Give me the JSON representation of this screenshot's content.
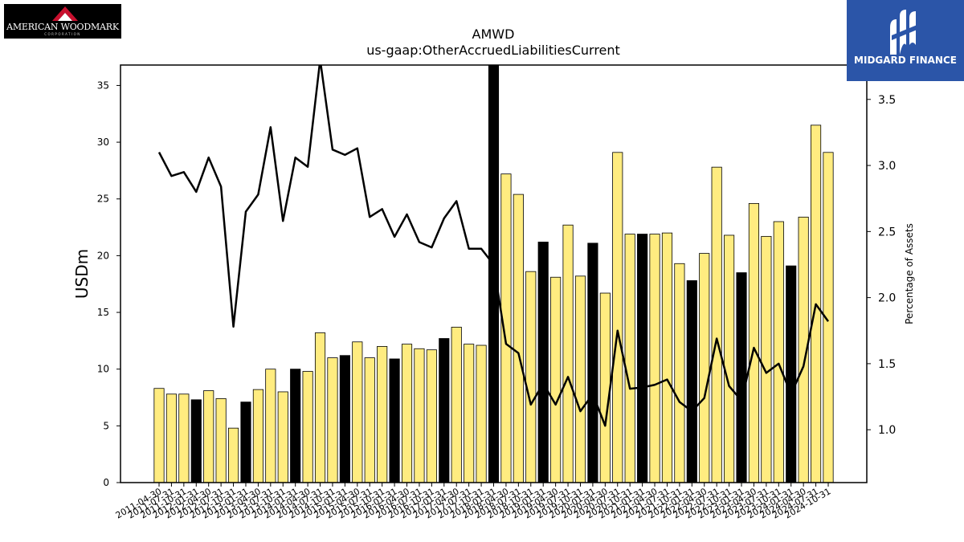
{
  "logos": {
    "left_text": "AMERICAN WOODMARK",
    "left_subtext": "CORPORATION",
    "right_text": "MIDGARD FINANCE"
  },
  "colors": {
    "bar_default": "#ffec80",
    "bar_highlight": "#000000",
    "line": "#000000",
    "logo_right_bg": "#2b55a8",
    "logo_left_accent": "#c8102e"
  },
  "chart_data": {
    "type": "bar",
    "title": "AMWD",
    "subtitle": "us-gaap:OtherAccruedLiabilitiesCurrent",
    "ylabel": "USDm",
    "y2label": "Percentage of Assets",
    "ylim": [
      0,
      36.8
    ],
    "y2lim": [
      0.6,
      3.76
    ],
    "yticks": [
      0,
      5,
      10,
      15,
      20,
      25,
      30,
      35
    ],
    "y2ticks": [
      "1.0",
      "1.5",
      "2.0",
      "2.5",
      "3.0",
      "3.5"
    ],
    "grid": false,
    "categories": [
      "2011-04-30",
      "2011-07-31",
      "2011-10-31",
      "2012-01-31",
      "2012-04-30",
      "2012-07-31",
      "2012-10-31",
      "2013-01-31",
      "2013-04-30",
      "2013-07-31",
      "2013-10-31",
      "2014-01-31",
      "2014-04-30",
      "2014-07-31",
      "2014-10-31",
      "2015-01-31",
      "2015-04-30",
      "2015-07-31",
      "2015-10-31",
      "2016-01-31",
      "2016-04-30",
      "2016-07-31",
      "2016-10-31",
      "2017-01-31",
      "2017-04-30",
      "2017-07-31",
      "2017-10-31",
      "2018-01-31",
      "2018-04-30",
      "2018-07-31",
      "2018-10-31",
      "2019-01-31",
      "2019-04-30",
      "2019-07-31",
      "2019-10-31",
      "2020-01-31",
      "2020-04-30",
      "2020-07-31",
      "2020-10-31",
      "2021-01-31",
      "2021-04-30",
      "2021-07-31",
      "2021-10-31",
      "2022-01-31",
      "2022-04-30",
      "2022-07-31",
      "2022-10-31",
      "2023-01-31",
      "2023-04-30",
      "2023-07-31",
      "2023-10-31",
      "2024-01-31",
      "2024-04-30",
      "2024-07-31",
      "2024-10-31"
    ],
    "series": [
      {
        "kind": "bar",
        "values": [
          8.3,
          7.8,
          7.8,
          7.3,
          8.1,
          7.4,
          4.8,
          7.1,
          8.2,
          10.0,
          8.0,
          10.0,
          9.8,
          13.2,
          11.0,
          11.2,
          12.4,
          11.0,
          12.0,
          10.9,
          12.2,
          11.8,
          11.7,
          12.7,
          13.7,
          12.2,
          12.1,
          37.0,
          27.2,
          25.4,
          18.6,
          21.2,
          18.1,
          22.7,
          18.2,
          21.1,
          16.7,
          29.1,
          21.9,
          21.9,
          21.9,
          22.0,
          19.3,
          17.8,
          20.2,
          27.8,
          21.8,
          18.5,
          24.6,
          21.7,
          23.0,
          19.1,
          23.4,
          31.5,
          29.1
        ],
        "highlight": [
          false,
          false,
          false,
          true,
          false,
          false,
          false,
          true,
          false,
          false,
          false,
          true,
          false,
          false,
          false,
          true,
          false,
          false,
          false,
          true,
          false,
          false,
          false,
          true,
          false,
          false,
          false,
          true,
          false,
          false,
          false,
          true,
          false,
          false,
          false,
          true,
          false,
          false,
          false,
          true,
          false,
          false,
          false,
          true,
          false,
          false,
          false,
          true,
          false,
          false,
          false,
          true,
          false,
          false,
          false
        ]
      },
      {
        "kind": "line",
        "axis": "right",
        "values": [
          3.1,
          2.92,
          2.95,
          2.8,
          3.06,
          2.84,
          1.78,
          2.65,
          2.78,
          3.29,
          2.58,
          3.06,
          2.99,
          3.8,
          3.12,
          3.08,
          3.13,
          2.61,
          2.67,
          2.46,
          2.63,
          2.42,
          2.38,
          2.6,
          2.73,
          2.37,
          2.37,
          2.25,
          1.65,
          1.58,
          1.19,
          1.35,
          1.19,
          1.4,
          1.14,
          1.27,
          1.03,
          1.75,
          1.31,
          1.32,
          1.34,
          1.38,
          1.21,
          1.14,
          1.24,
          1.69,
          1.33,
          1.22,
          1.62,
          1.43,
          1.5,
          1.27,
          1.48,
          1.95,
          1.82
        ]
      }
    ]
  }
}
